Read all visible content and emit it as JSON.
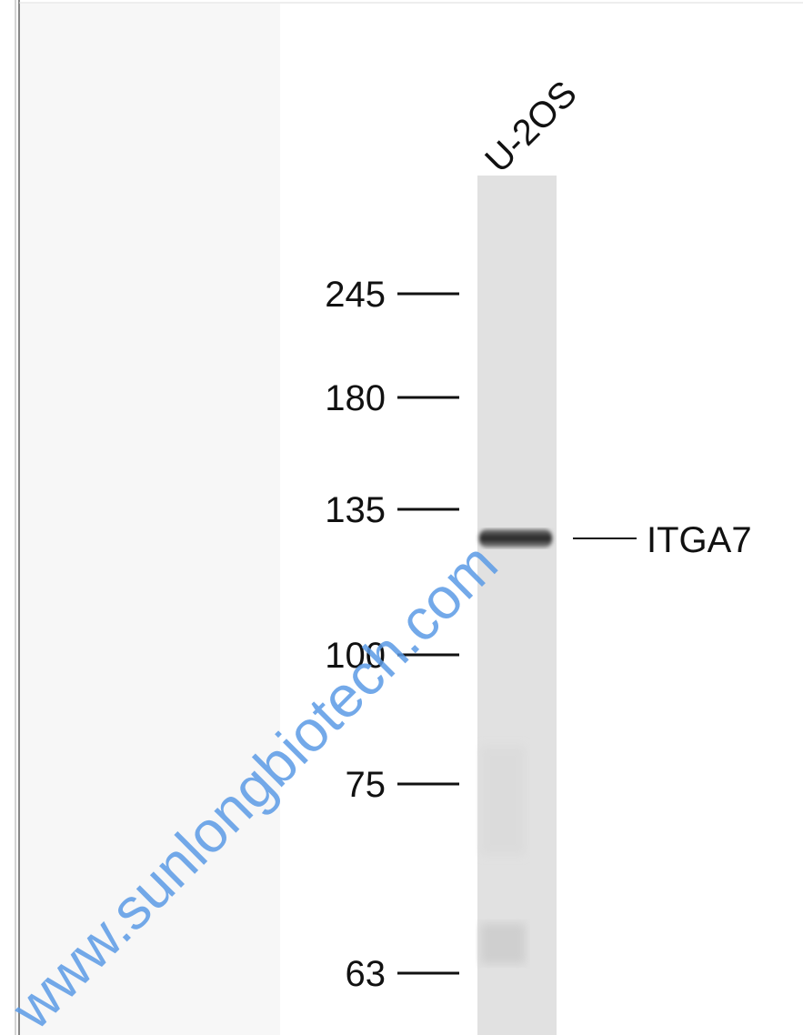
{
  "lane_label": "U-2OS",
  "markers": [
    245,
    180,
    135,
    100,
    75,
    63
  ],
  "band_label": "ITGA7",
  "watermark": "www.sunlongbiotech.com"
}
